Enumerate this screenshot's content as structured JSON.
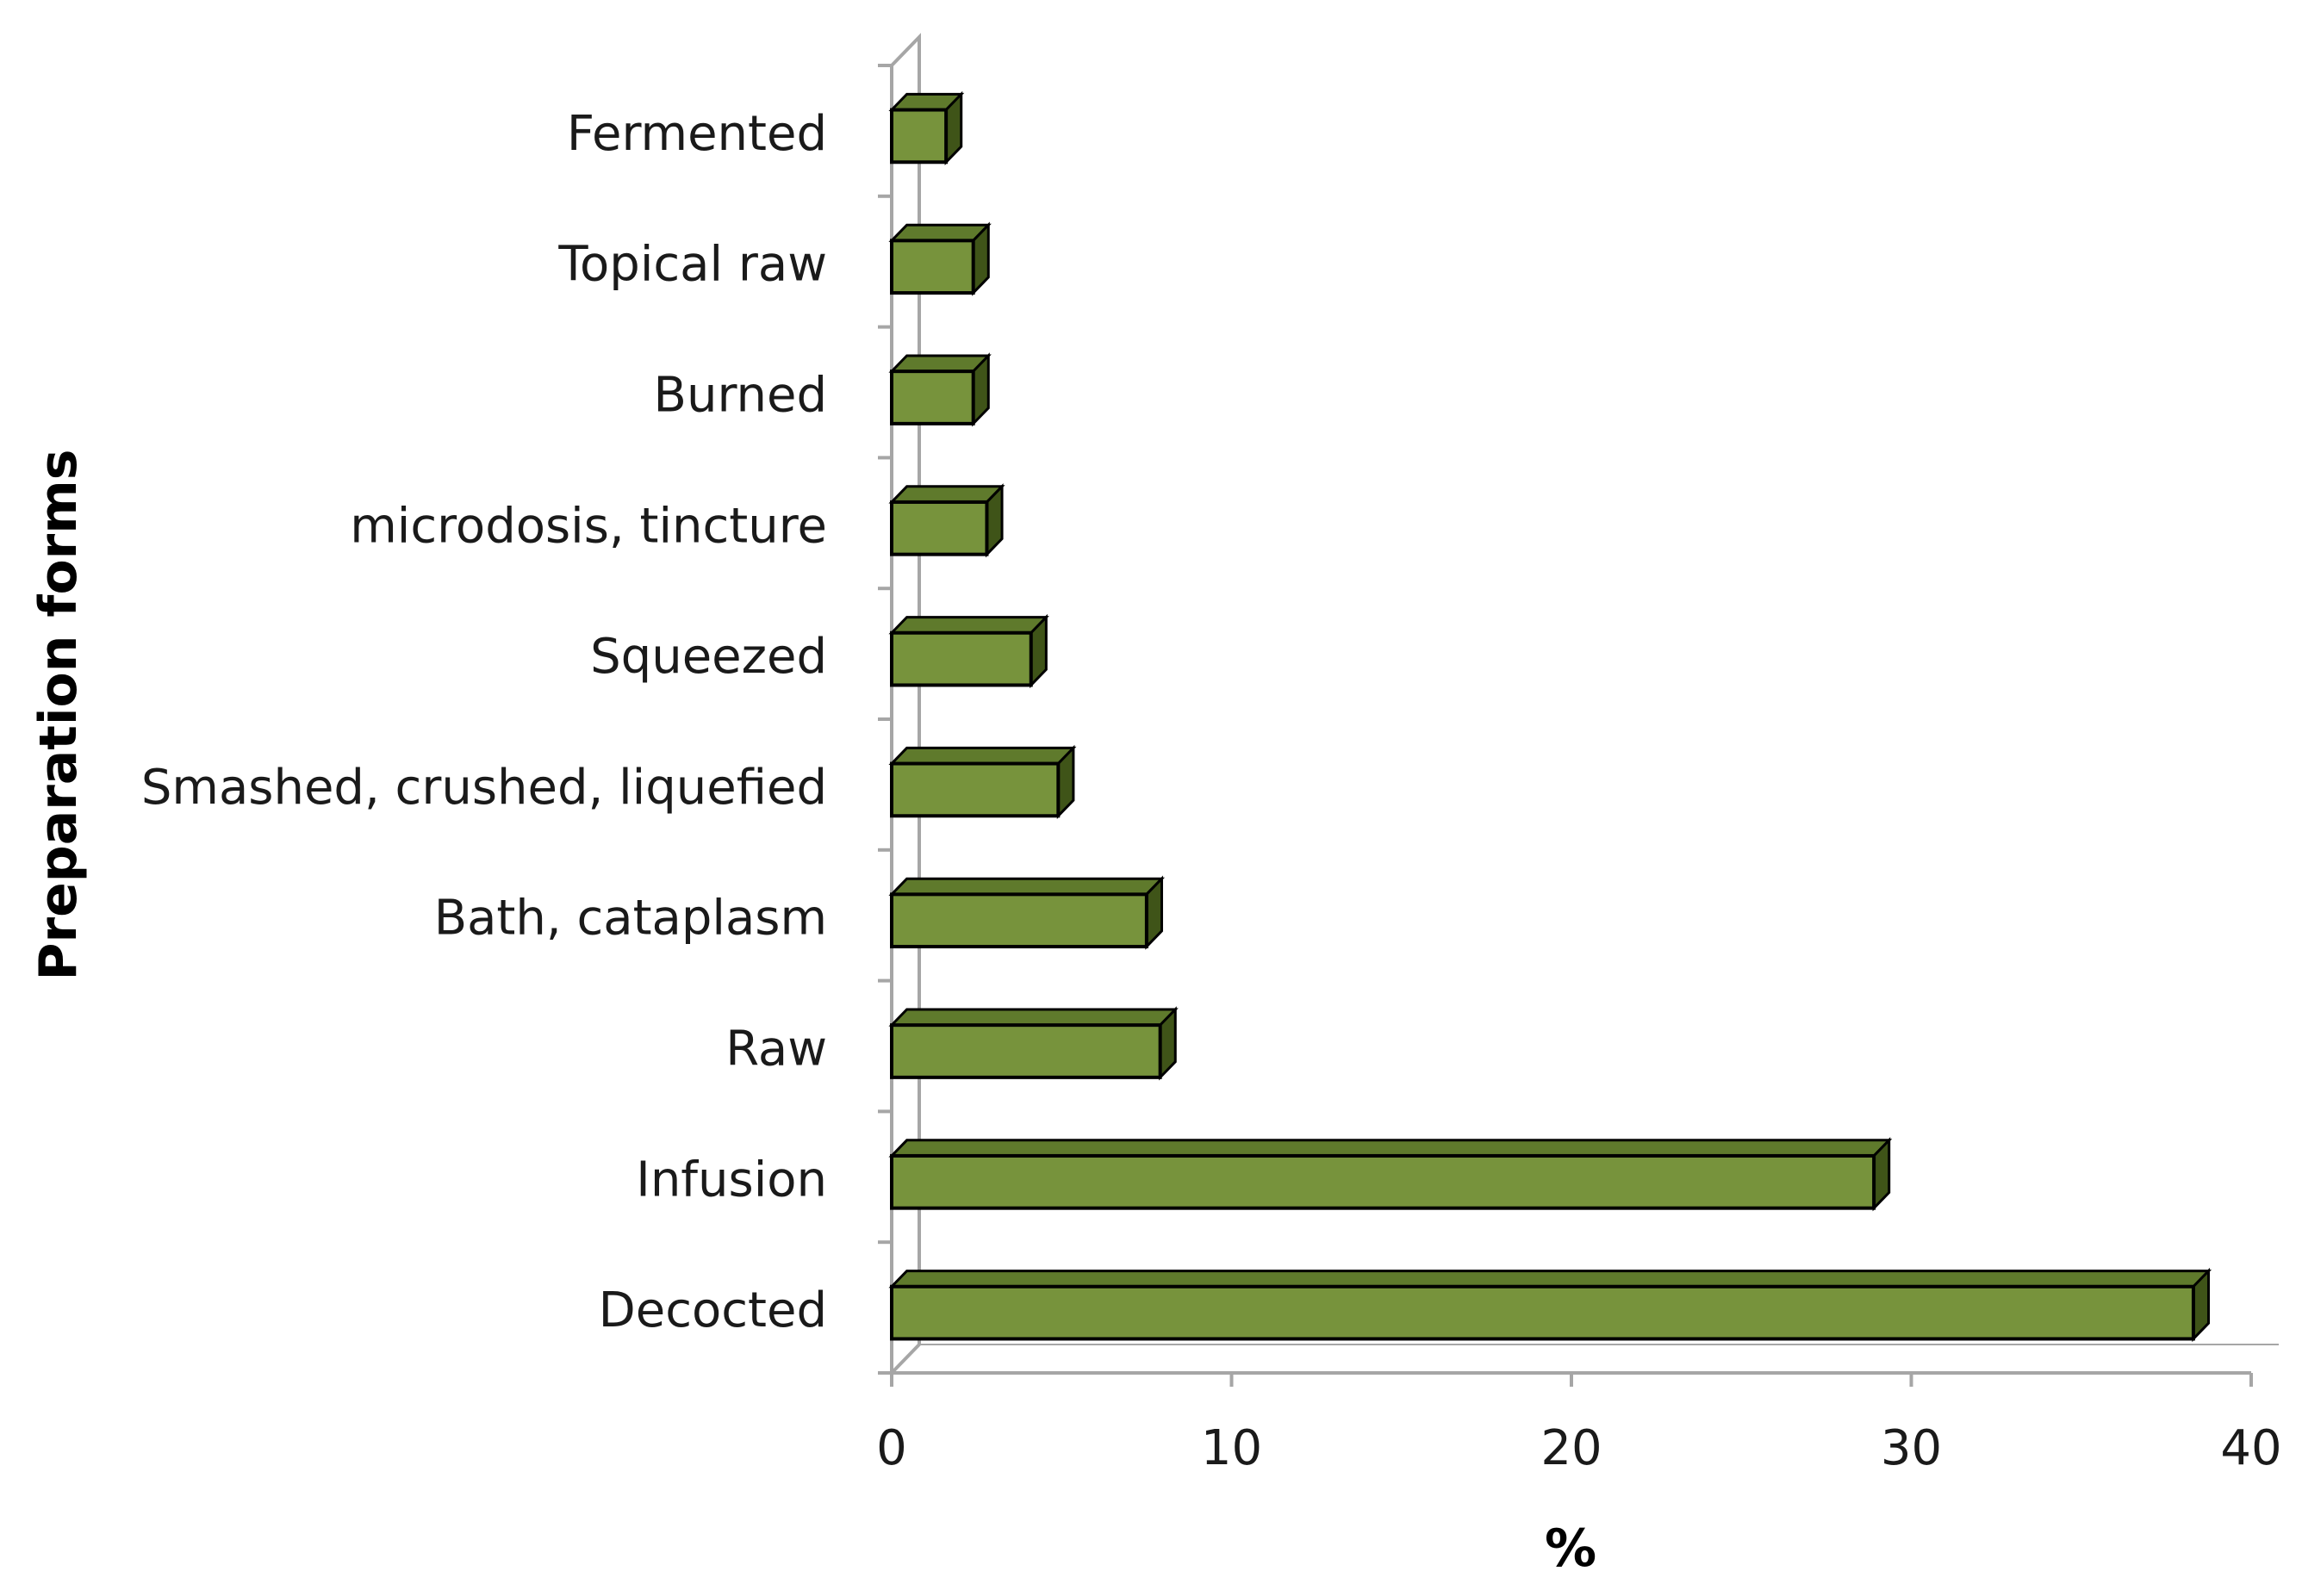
{
  "chart_data": {
    "type": "bar",
    "orientation": "horizontal",
    "style": "3d",
    "categories": [
      "Decocted",
      "Infusion",
      "Raw",
      "Bath, cataplasm",
      "Smashed, crushed, liquefied",
      "Squeezed",
      "microdosis, tincture",
      "Burned",
      "Topical raw",
      "Fermented"
    ],
    "values": [
      38.3,
      28.9,
      7.9,
      7.5,
      4.9,
      4.1,
      2.8,
      2.4,
      2.4,
      1.6
    ],
    "xlabel": "%",
    "ylabel": "Preparation forms",
    "xlim": [
      0,
      40
    ],
    "xticks": [
      0,
      10,
      20,
      30,
      40
    ],
    "grid": false,
    "legend": "none",
    "colors": {
      "bar_front": "#77933c",
      "bar_top": "#5f7a2c",
      "bar_side": "#3f5418",
      "bar_stroke": "#000000",
      "axis": "#a6a6a6"
    }
  }
}
